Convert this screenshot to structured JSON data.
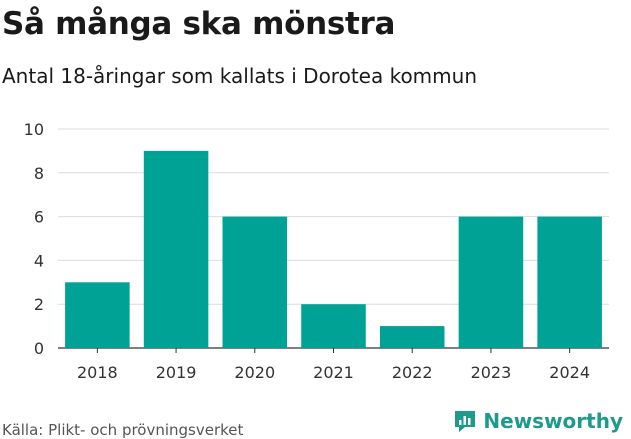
{
  "chart_data": {
    "type": "bar",
    "title": "Så många ska mönstra",
    "subtitle": "Antal 18-åringar som kallats i Dorotea kommun",
    "categories": [
      "2018",
      "2019",
      "2020",
      "2021",
      "2022",
      "2023",
      "2024"
    ],
    "values": [
      3,
      9,
      6,
      2,
      1,
      6,
      6
    ],
    "ylim": [
      0,
      10
    ],
    "yticks": [
      0,
      2,
      4,
      6,
      8,
      10
    ],
    "grid": true,
    "bar_color": "#00a295",
    "xlabel": "",
    "ylabel": ""
  },
  "footer": {
    "source": "Källa: Plikt- och prövningsverket",
    "brand": "Newsworthy",
    "brand_icon": "newsworthy-logo-icon",
    "brand_color": "#1d9a8c"
  }
}
